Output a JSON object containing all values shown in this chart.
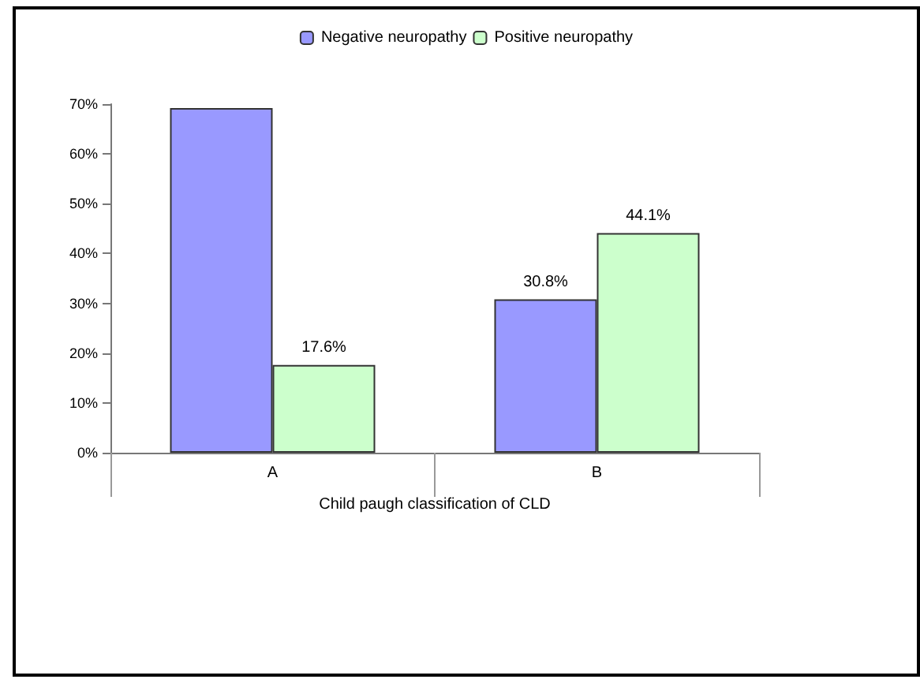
{
  "chart_data": {
    "type": "bar",
    "xlabel": "Child paugh classification of CLD",
    "categories": [
      "A",
      "B"
    ],
    "series": [
      {
        "name": "Negative neuropathy",
        "color": "#9999ff",
        "values": [
          69.2,
          30.8
        ],
        "value_labels": [
          null,
          "30.8%"
        ]
      },
      {
        "name": "Positive neuropathy",
        "color": "#ccffcc",
        "values": [
          17.6,
          44.1
        ],
        "value_labels": [
          "17.6%",
          "44.1%"
        ]
      }
    ],
    "ylim": [
      0,
      70
    ],
    "yticks": [
      {
        "value": 0,
        "label": "0%"
      },
      {
        "value": 10,
        "label": "10%"
      },
      {
        "value": 20,
        "label": "20%"
      },
      {
        "value": 30,
        "label": "30%"
      },
      {
        "value": 40,
        "label": "40%"
      },
      {
        "value": 50,
        "label": "50%"
      },
      {
        "value": 60,
        "label": "60%"
      },
      {
        "value": 70,
        "label": "70%"
      }
    ],
    "grid": false,
    "legend": "top"
  }
}
